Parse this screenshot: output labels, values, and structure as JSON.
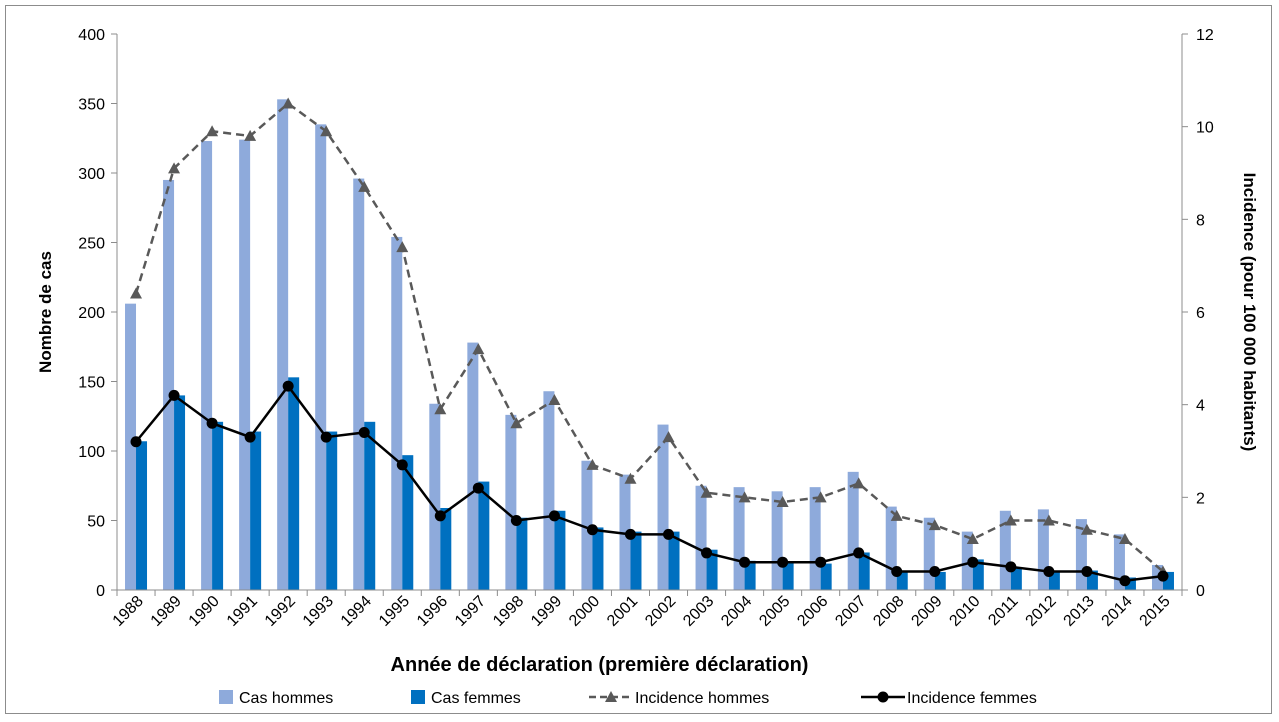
{
  "chart_data": {
    "type": "bar",
    "categories": [
      "1988",
      "1989",
      "1990",
      "1991",
      "1992",
      "1993",
      "1994",
      "1995",
      "1996",
      "1997",
      "1998",
      "1999",
      "2000",
      "2001",
      "2002",
      "2003",
      "2004",
      "2005",
      "2006",
      "2007",
      "2008",
      "2009",
      "2010",
      "2011",
      "2012",
      "2013",
      "2014",
      "2015"
    ],
    "series": [
      {
        "name": "Cas hommes",
        "kind": "bar",
        "axis": "left",
        "color": "#8eaadb",
        "values": [
          206,
          295,
          323,
          324,
          353,
          335,
          296,
          254,
          134,
          178,
          126,
          143,
          93,
          83,
          119,
          75,
          74,
          71,
          74,
          85,
          60,
          52,
          42,
          57,
          58,
          51,
          40,
          18
        ]
      },
      {
        "name": "Cas femmes",
        "kind": "bar",
        "axis": "left",
        "color": "#0070c0",
        "values": [
          107,
          140,
          121,
          114,
          153,
          114,
          121,
          97,
          59,
          78,
          52,
          57,
          45,
          42,
          42,
          29,
          21,
          20,
          19,
          27,
          14,
          13,
          22,
          16,
          14,
          14,
          9,
          13
        ]
      },
      {
        "name": "Incidence hommes",
        "kind": "line",
        "axis": "right",
        "color": "#595959",
        "marker": "triangle",
        "dashed": true,
        "values": [
          6.4,
          9.1,
          9.9,
          9.8,
          10.5,
          9.9,
          8.7,
          7.4,
          3.9,
          5.2,
          3.6,
          4.1,
          2.7,
          2.4,
          3.3,
          2.1,
          2.0,
          1.9,
          2.0,
          2.3,
          1.6,
          1.4,
          1.1,
          1.5,
          1.5,
          1.3,
          1.1,
          0.4
        ]
      },
      {
        "name": "Incidence femmes",
        "kind": "line",
        "axis": "right",
        "color": "#000000",
        "marker": "circle",
        "dashed": false,
        "values": [
          3.2,
          4.2,
          3.6,
          3.3,
          4.4,
          3.3,
          3.4,
          2.7,
          1.6,
          2.2,
          1.5,
          1.6,
          1.3,
          1.2,
          1.2,
          0.8,
          0.6,
          0.6,
          0.6,
          0.8,
          0.4,
          0.4,
          0.6,
          0.5,
          0.4,
          0.4,
          0.2,
          0.3
        ]
      }
    ],
    "xlabel": "Année de déclaration (première déclaration)",
    "ylabel": "Nombre de cas",
    "y2label": "Incidence (pour 100 000 habitants)",
    "ylim": [
      0,
      400
    ],
    "yticks": [
      "0",
      "50",
      "100",
      "150",
      "200",
      "250",
      "300",
      "350",
      "400"
    ],
    "y2lim": [
      0,
      12
    ],
    "y2ticks": [
      "0",
      "2",
      "4",
      "6",
      "8",
      "10",
      "12"
    ],
    "grid": false,
    "legend_position": "bottom"
  }
}
